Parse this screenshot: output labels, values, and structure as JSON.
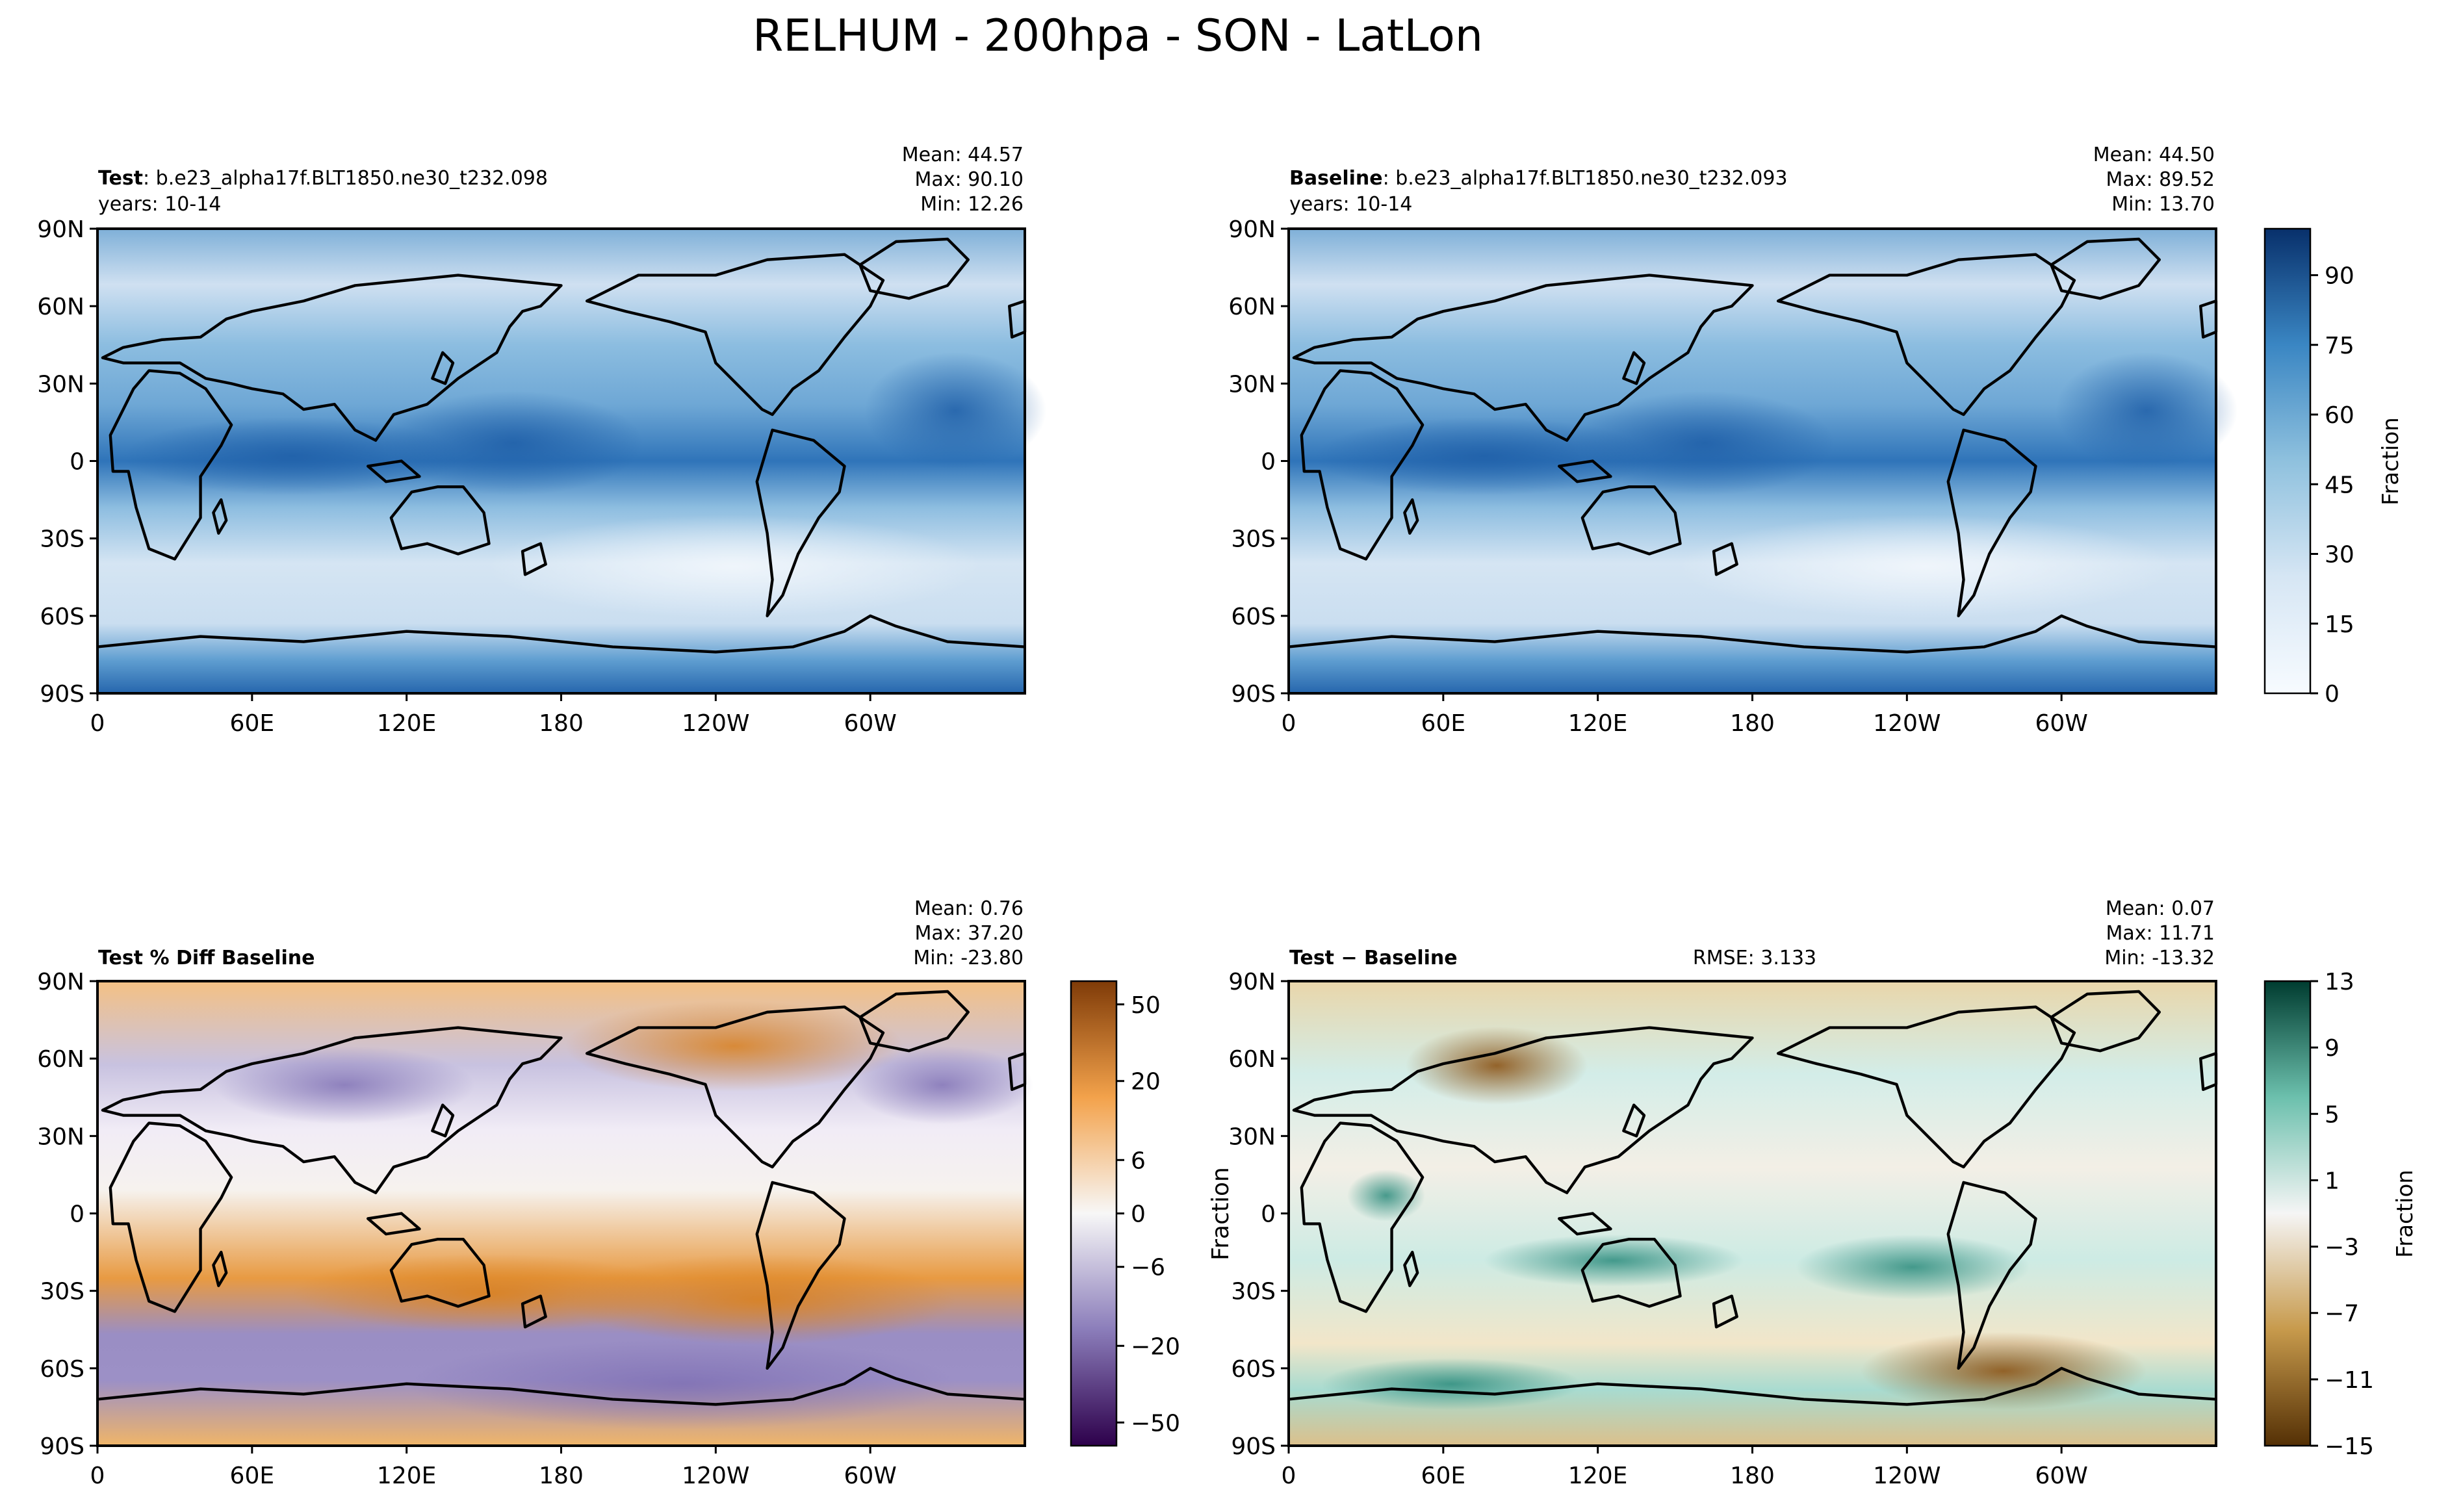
{
  "figure": {
    "title": "RELHUM - 200hpa - SON - LatLon"
  },
  "lat_ticks": [
    "90N",
    "60N",
    "30N",
    "0",
    "30S",
    "60S",
    "90S"
  ],
  "lon_ticks": [
    "0",
    "60E",
    "120E",
    "180",
    "120W",
    "60W"
  ],
  "panels": {
    "test": {
      "label_bold": "Test",
      "label_rest": ": b.e23_alpha17f.BLT1850.ne30_t232.098",
      "years": "years: 10-14",
      "mean": "Mean: 44.57",
      "max": "Max: 90.10",
      "min": "Min: 12.26"
    },
    "baseline": {
      "label_bold": "Baseline",
      "label_rest": ": b.e23_alpha17f.BLT1850.ne30_t232.093",
      "years": "years: 10-14",
      "mean": "Mean: 44.50",
      "max": "Max: 89.52",
      "min": "Min: 13.70"
    },
    "pctdiff": {
      "label_bold": "Test % Diff Baseline",
      "mean": "Mean:  0.76",
      "max": "Max: 37.20",
      "min": "Min: -23.80"
    },
    "diff": {
      "label_bold": "Test − Baseline",
      "rmse": "RMSE: 3.133",
      "ylabel": "Fraction",
      "mean": "Mean:  0.07",
      "max": "Max: 11.71",
      "min": "Min: -13.32"
    }
  },
  "colorbars": {
    "main": {
      "ticks": [
        "0",
        "15",
        "30",
        "45",
        "60",
        "75",
        "90"
      ],
      "label": "Fraction",
      "colors": [
        "#f7fbff",
        "#08306b"
      ]
    },
    "pct": {
      "ticks": [
        "−50",
        "−20",
        "−6",
        "0",
        "6",
        "20",
        "50"
      ],
      "colors_low": [
        "#2d004b",
        "#f7f7f7"
      ],
      "colors_high": [
        "#f7f7f7",
        "#7f3b08"
      ]
    },
    "diff": {
      "ticks": [
        "−15",
        "−11",
        "−7",
        "−3",
        "1",
        "5",
        "9",
        "13"
      ],
      "label": "Fraction",
      "colors_low": [
        "#543005",
        "#f5f5f5"
      ],
      "colors_high": [
        "#f5f5f5",
        "#003c30"
      ]
    }
  },
  "chart_data": [
    {
      "type": "heatmap",
      "name": "Test",
      "title": "Test: b.e23_alpha17f.BLT1850.ne30_t232.098",
      "field": "RELHUM 200hpa SON",
      "stats": {
        "mean": 44.57,
        "max": 90.1,
        "min": 12.26
      },
      "xlim": [
        0,
        360
      ],
      "ylim": [
        -90,
        90
      ],
      "colorbar_range": [
        0,
        100
      ],
      "colorbar_label": "Fraction"
    },
    {
      "type": "heatmap",
      "name": "Baseline",
      "title": "Baseline: b.e23_alpha17f.BLT1850.ne30_t232.093",
      "stats": {
        "mean": 44.5,
        "max": 89.52,
        "min": 13.7
      },
      "xlim": [
        0,
        360
      ],
      "ylim": [
        -90,
        90
      ],
      "colorbar_range": [
        0,
        100
      ],
      "colorbar_label": "Fraction"
    },
    {
      "type": "heatmap",
      "name": "Test % Diff Baseline",
      "stats": {
        "mean": 0.76,
        "max": 37.2,
        "min": -23.8
      },
      "xlim": [
        0,
        360
      ],
      "ylim": [
        -90,
        90
      ],
      "colorbar_ticks": [
        -50,
        -20,
        -6,
        0,
        6,
        20,
        50
      ]
    },
    {
      "type": "heatmap",
      "name": "Test − Baseline",
      "stats": {
        "mean": 0.07,
        "max": 11.71,
        "min": -13.32,
        "rmse": 3.133
      },
      "xlim": [
        0,
        360
      ],
      "ylim": [
        -90,
        90
      ],
      "colorbar_ticks": [
        -15,
        -11,
        -7,
        -3,
        1,
        5,
        9,
        13
      ],
      "colorbar_label": "Fraction"
    }
  ]
}
